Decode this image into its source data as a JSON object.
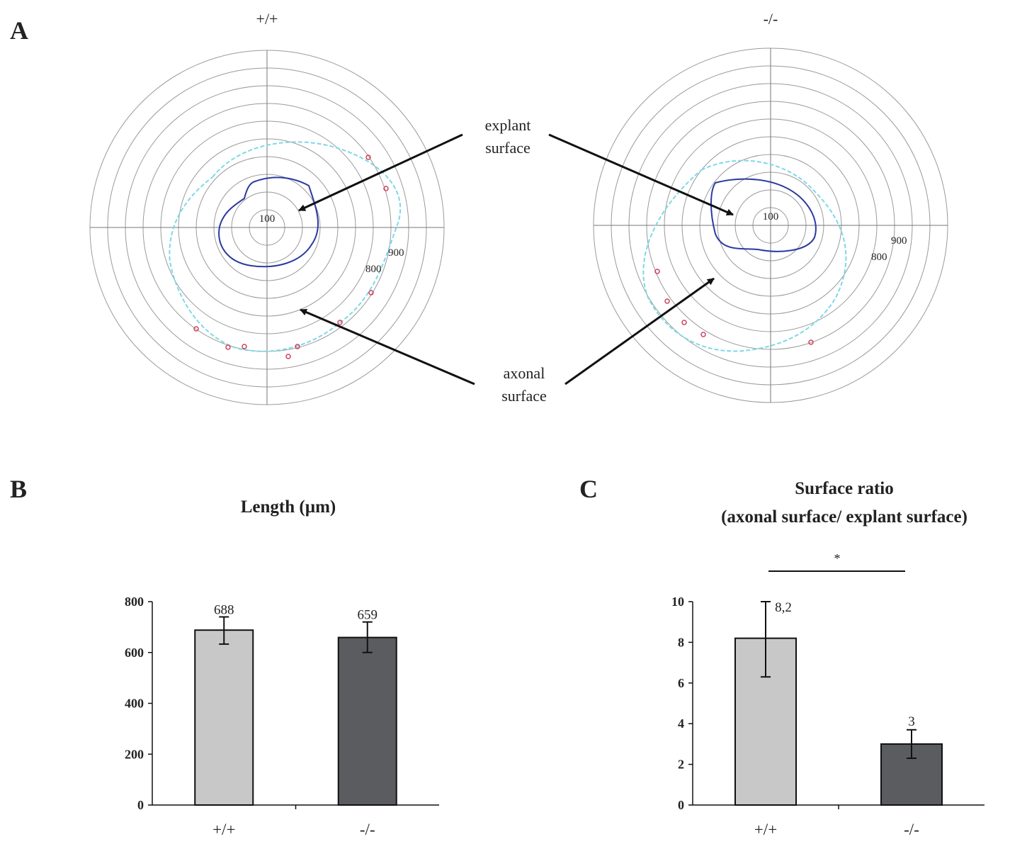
{
  "panels": {
    "a": "A",
    "b": "B",
    "c": "C"
  },
  "panel_a": {
    "left_title": "+/+",
    "right_title": "-/-",
    "ring_labels": {
      "inner": "100",
      "r8": "800",
      "r9": "900"
    },
    "annotations": {
      "explant_line1": "explant",
      "explant_line2": "surface",
      "axonal_line1": "axonal",
      "axonal_line2": "surface"
    },
    "colors": {
      "grid": "#9a9a9a",
      "explant_outline": "#2b3aa0",
      "axonal_outline": "#7fd8e8",
      "markers": "#d0405a"
    }
  },
  "chart_data": [
    {
      "type": "bar",
      "title": "Length (µm)",
      "categories": [
        "+/+",
        "-/-"
      ],
      "values": [
        688,
        659
      ],
      "value_labels": [
        "688",
        "659"
      ],
      "error": [
        [
          633,
          740
        ],
        [
          600,
          720
        ]
      ],
      "ylim": [
        0,
        800
      ],
      "yticks": [
        "0",
        "200",
        "400",
        "600",
        "800"
      ],
      "colors": [
        "#c8c8c8",
        "#5a5c60"
      ]
    },
    {
      "type": "bar",
      "title_lines": [
        "Surface ratio",
        "(axonal surface/ explant surface)"
      ],
      "categories": [
        "+/+",
        "-/-"
      ],
      "values": [
        8.2,
        3
      ],
      "value_labels": [
        "8,2",
        "3"
      ],
      "error": [
        [
          6.3,
          10
        ],
        [
          2.3,
          3.7
        ]
      ],
      "ylim": [
        0,
        10
      ],
      "yticks": [
        "0",
        "2",
        "4",
        "6",
        "8",
        "10"
      ],
      "significance": "*",
      "colors": [
        "#c8c8c8",
        "#5a5c60"
      ]
    }
  ]
}
